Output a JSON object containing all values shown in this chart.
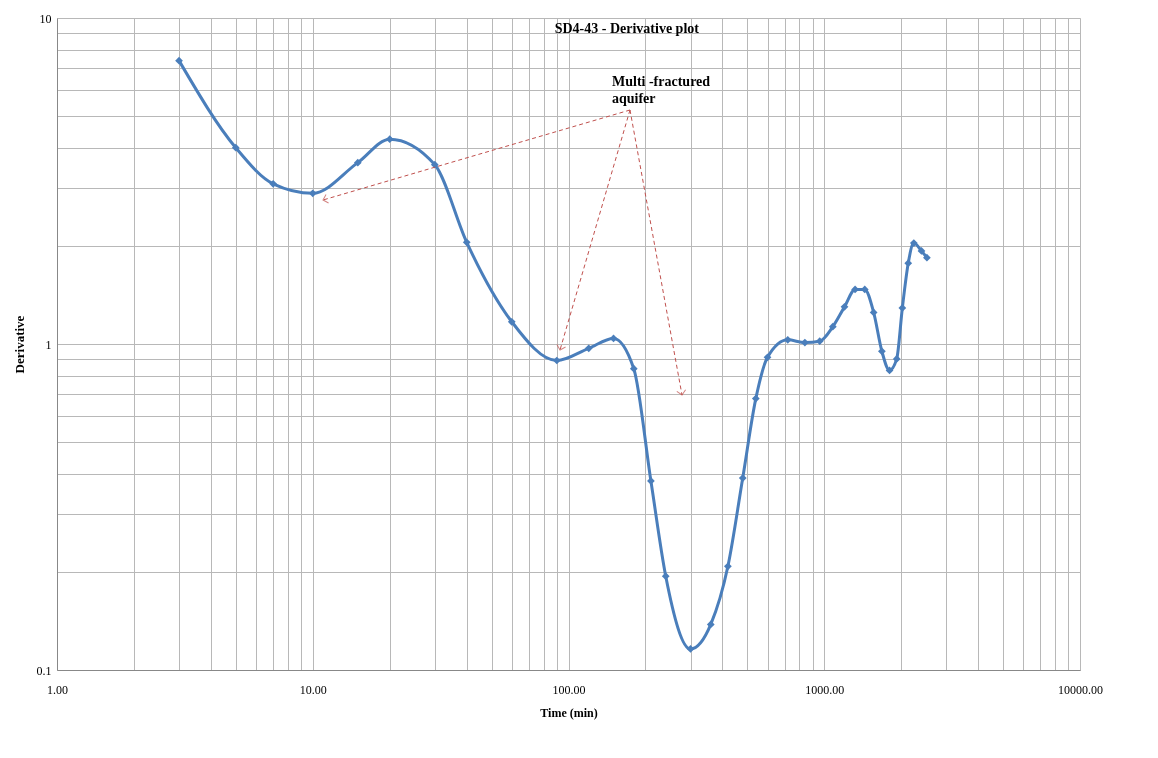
{
  "chart_data": {
    "type": "line",
    "title": "SD4-43 - Derivative plot",
    "xlabel": "Time (min)",
    "ylabel": "Derivative",
    "annotations": [
      "Multi -fractured aquifer"
    ],
    "log": "xy",
    "grid": true,
    "marker": "diamond",
    "line_style": "solid",
    "xlim": [
      1,
      10000
    ],
    "ylim": [
      0.1,
      10
    ],
    "xticks": [
      {
        "value": 1,
        "label": "1.00"
      },
      {
        "value": 2,
        "label": null
      },
      {
        "value": 3,
        "label": null
      },
      {
        "value": 4,
        "label": null
      },
      {
        "value": 5,
        "label": null
      },
      {
        "value": 6,
        "label": null
      },
      {
        "value": 7,
        "label": null
      },
      {
        "value": 8,
        "label": null
      },
      {
        "value": 9,
        "label": null
      },
      {
        "value": 10,
        "label": "10.00"
      },
      {
        "value": 20,
        "label": null
      },
      {
        "value": 30,
        "label": null
      },
      {
        "value": 40,
        "label": null
      },
      {
        "value": 50,
        "label": null
      },
      {
        "value": 60,
        "label": null
      },
      {
        "value": 70,
        "label": null
      },
      {
        "value": 80,
        "label": null
      },
      {
        "value": 90,
        "label": null
      },
      {
        "value": 100,
        "label": "100.00"
      },
      {
        "value": 200,
        "label": null
      },
      {
        "value": 300,
        "label": null
      },
      {
        "value": 400,
        "label": null
      },
      {
        "value": 500,
        "label": null
      },
      {
        "value": 600,
        "label": null
      },
      {
        "value": 700,
        "label": null
      },
      {
        "value": 800,
        "label": null
      },
      {
        "value": 900,
        "label": null
      },
      {
        "value": 1000,
        "label": "1000.00"
      },
      {
        "value": 2000,
        "label": null
      },
      {
        "value": 3000,
        "label": null
      },
      {
        "value": 4000,
        "label": null
      },
      {
        "value": 5000,
        "label": null
      },
      {
        "value": 6000,
        "label": null
      },
      {
        "value": 7000,
        "label": null
      },
      {
        "value": 8000,
        "label": null
      },
      {
        "value": 9000,
        "label": null
      },
      {
        "value": 10000,
        "label": "10000.00"
      }
    ],
    "yticks": [
      0.1,
      {
        "value": 0.2,
        "label": null
      },
      {
        "value": 0.3,
        "label": null
      },
      {
        "value": 0.4,
        "label": null
      },
      {
        "value": 0.5,
        "label": null
      },
      {
        "value": 0.6,
        "label": null
      },
      {
        "value": 0.7,
        "label": null
      },
      {
        "value": 0.8,
        "label": null
      },
      {
        "value": 0.9,
        "label": null
      },
      1,
      {
        "value": 2,
        "label": null
      },
      {
        "value": 3,
        "label": null
      },
      {
        "value": 4,
        "label": null
      },
      {
        "value": 5,
        "label": null
      },
      {
        "value": 6,
        "label": null
      },
      {
        "value": 7,
        "label": null
      },
      {
        "value": 8,
        "label": null
      },
      {
        "value": 9,
        "label": null
      },
      10
    ],
    "series": [
      {
        "color": "#4a7ebb",
        "x": [
          3,
          5,
          7,
          10,
          15,
          20,
          30,
          40,
          60,
          90,
          120,
          150,
          180,
          210,
          240,
          300,
          360,
          420,
          480,
          540,
          600,
          720,
          840,
          960,
          1080,
          1200,
          1320,
          1440,
          1560,
          1680,
          1800,
          1920,
          2020,
          2130,
          2240,
          2400,
          2520
        ],
        "values": [
          7.4,
          4.0,
          3.1,
          2.9,
          3.6,
          4.25,
          3.55,
          2.05,
          1.17,
          0.89,
          0.97,
          1.04,
          0.84,
          0.38,
          0.194,
          0.116,
          0.138,
          0.208,
          0.388,
          0.68,
          0.91,
          1.03,
          1.01,
          1.02,
          1.13,
          1.3,
          1.47,
          1.47,
          1.25,
          0.95,
          0.83,
          0.9,
          1.29,
          1.77,
          2.04,
          1.93,
          1.84
        ]
      }
    ]
  }
}
